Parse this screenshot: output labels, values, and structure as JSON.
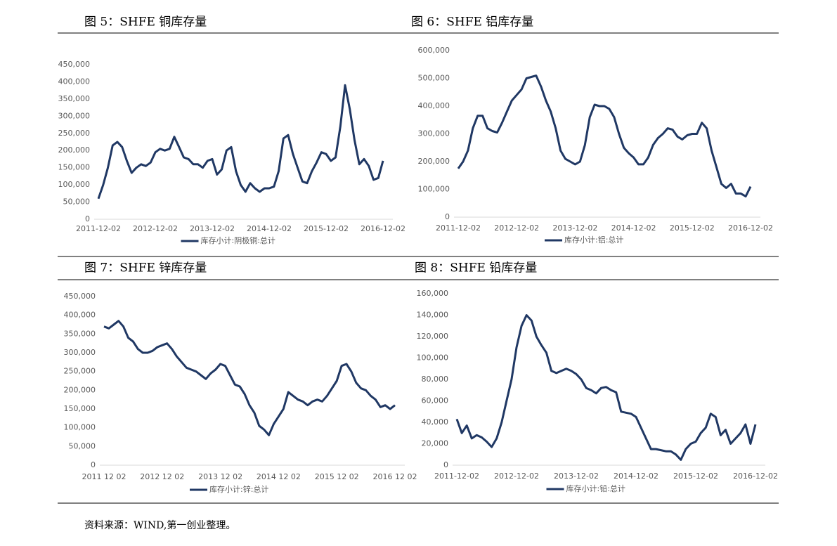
{
  "chart_data": [
    {
      "type": "line",
      "title": "图 5：SHFE 铜库存量",
      "categories": [
        "2011-12-02",
        null,
        null,
        null,
        null,
        null,
        null,
        null,
        null,
        null,
        null,
        null,
        "2012-12-02",
        null,
        null,
        null,
        null,
        null,
        null,
        null,
        null,
        null,
        null,
        null,
        "2013-12-02",
        null,
        null,
        null,
        null,
        null,
        null,
        null,
        null,
        null,
        null,
        null,
        "2014-12-02",
        null,
        null,
        null,
        null,
        null,
        null,
        null,
        null,
        null,
        null,
        null,
        "2015-12-02",
        null,
        null,
        null,
        null,
        null,
        null,
        null,
        null,
        null,
        null,
        null,
        "2016-12-02"
      ],
      "series": [
        {
          "name": "库存小计:阴极铜:总计",
          "color": "#203864",
          "values": [
            60000,
            100000,
            150000,
            215000,
            225000,
            210000,
            170000,
            135000,
            150000,
            160000,
            155000,
            165000,
            195000,
            205000,
            200000,
            205000,
            240000,
            210000,
            180000,
            175000,
            160000,
            160000,
            150000,
            170000,
            175000,
            130000,
            145000,
            200000,
            210000,
            140000,
            100000,
            80000,
            105000,
            90000,
            80000,
            90000,
            90000,
            95000,
            140000,
            235000,
            245000,
            190000,
            150000,
            110000,
            105000,
            140000,
            165000,
            195000,
            190000,
            170000,
            180000,
            270000,
            390000,
            320000,
            230000,
            160000,
            175000,
            155000,
            115000,
            120000,
            170000
          ]
        }
      ],
      "ylim": [
        0,
        450000
      ],
      "yticks": [
        0,
        {
          "value": 50000,
          "label": "50,000"
        },
        {
          "value": 100000,
          "label": "100,000"
        },
        {
          "value": 150000,
          "label": "150,000"
        },
        {
          "value": 200000,
          "label": "200,000"
        },
        {
          "value": 250000,
          "label": "250,000"
        },
        {
          "value": 300000,
          "label": "300,000"
        },
        {
          "value": 350000,
          "label": "350,000"
        },
        {
          "value": 400000,
          "label": "400,000"
        },
        {
          "value": 450000,
          "label": "450,000"
        }
      ],
      "legend": "bottom"
    },
    {
      "type": "line",
      "title": "图 6：SHFE 铝库存量",
      "categories": [
        "2011-12-02",
        null,
        null,
        null,
        null,
        null,
        null,
        null,
        null,
        null,
        null,
        null,
        "2012-12-02",
        null,
        null,
        null,
        null,
        null,
        null,
        null,
        null,
        null,
        null,
        null,
        "2013-12-02",
        null,
        null,
        null,
        null,
        null,
        null,
        null,
        null,
        null,
        null,
        null,
        "2014-12-02",
        null,
        null,
        null,
        null,
        null,
        null,
        null,
        null,
        null,
        null,
        null,
        "2015-12-02",
        null,
        null,
        null,
        null,
        null,
        null,
        null,
        null,
        null,
        null,
        null,
        "2016-12-02"
      ],
      "series": [
        {
          "name": "库存小计:铝:总计",
          "color": "#203864",
          "values": [
            175000,
            200000,
            240000,
            320000,
            365000,
            365000,
            320000,
            310000,
            305000,
            340000,
            380000,
            420000,
            440000,
            460000,
            500000,
            505000,
            510000,
            470000,
            420000,
            380000,
            320000,
            240000,
            210000,
            200000,
            190000,
            200000,
            260000,
            360000,
            405000,
            400000,
            400000,
            390000,
            360000,
            300000,
            250000,
            230000,
            215000,
            190000,
            190000,
            215000,
            260000,
            285000,
            300000,
            320000,
            315000,
            290000,
            280000,
            295000,
            300000,
            300000,
            340000,
            320000,
            240000,
            180000,
            120000,
            105000,
            120000,
            85000,
            85000,
            75000,
            110000
          ]
        }
      ],
      "ylim": [
        0,
        600000
      ],
      "yticks": [
        0,
        {
          "value": 100000,
          "label": "100,000"
        },
        {
          "value": 200000,
          "label": "200,000"
        },
        {
          "value": 300000,
          "label": "300,000"
        },
        {
          "value": 400000,
          "label": "400,000"
        },
        {
          "value": 500000,
          "label": "500,000"
        },
        {
          "value": 600000,
          "label": "600,000"
        }
      ],
      "legend": "bottom"
    },
    {
      "type": "line",
      "title": "图 7：SHFE 锌库存量",
      "categories": [
        "2011 12 02",
        null,
        null,
        null,
        null,
        null,
        null,
        null,
        null,
        null,
        null,
        null,
        "2012 12 02",
        null,
        null,
        null,
        null,
        null,
        null,
        null,
        null,
        null,
        null,
        null,
        "2013 12 02",
        null,
        null,
        null,
        null,
        null,
        null,
        null,
        null,
        null,
        null,
        null,
        "2014 12 02",
        null,
        null,
        null,
        null,
        null,
        null,
        null,
        null,
        null,
        null,
        null,
        "2015 12 02",
        null,
        null,
        null,
        null,
        null,
        null,
        null,
        null,
        null,
        null,
        null,
        "2016 12 02"
      ],
      "series": [
        {
          "name": "库存小计:锌:总计",
          "color": "#203864",
          "values": [
            370000,
            365000,
            375000,
            385000,
            370000,
            340000,
            330000,
            310000,
            300000,
            300000,
            305000,
            315000,
            320000,
            325000,
            310000,
            290000,
            275000,
            260000,
            255000,
            250000,
            240000,
            230000,
            245000,
            255000,
            270000,
            265000,
            240000,
            215000,
            210000,
            190000,
            160000,
            140000,
            105000,
            95000,
            80000,
            110000,
            130000,
            150000,
            195000,
            185000,
            175000,
            170000,
            160000,
            170000,
            175000,
            170000,
            185000,
            205000,
            225000,
            265000,
            270000,
            250000,
            220000,
            205000,
            200000,
            185000,
            175000,
            155000,
            160000,
            150000,
            160000
          ]
        }
      ],
      "ylim": [
        0,
        450000
      ],
      "yticks": [
        0,
        {
          "value": 50000,
          "label": "50,000"
        },
        {
          "value": 100000,
          "label": "100,000"
        },
        {
          "value": 150000,
          "label": "150,000"
        },
        {
          "value": 200000,
          "label": "200,000"
        },
        {
          "value": 250000,
          "label": "250,000"
        },
        {
          "value": 300000,
          "label": "300,000"
        },
        {
          "value": 350000,
          "label": "350,000"
        },
        {
          "value": 400000,
          "label": "400,000"
        },
        {
          "value": 450000,
          "label": "450,000"
        }
      ],
      "legend": "bottom"
    },
    {
      "type": "line",
      "title": "图 8：SHFE 铅库存量",
      "categories": [
        "2011-12-02",
        null,
        null,
        null,
        null,
        null,
        null,
        null,
        null,
        null,
        null,
        null,
        "2012-12-02",
        null,
        null,
        null,
        null,
        null,
        null,
        null,
        null,
        null,
        null,
        null,
        "2013-12-02",
        null,
        null,
        null,
        null,
        null,
        null,
        null,
        null,
        null,
        null,
        null,
        "2014-12-02",
        null,
        null,
        null,
        null,
        null,
        null,
        null,
        null,
        null,
        null,
        null,
        "2015-12-02",
        null,
        null,
        null,
        null,
        null,
        null,
        null,
        null,
        null,
        null,
        null,
        "2016-12-02"
      ],
      "series": [
        {
          "name": "库存小计:铅:总计",
          "color": "#203864",
          "values": [
            43000,
            30000,
            37000,
            25000,
            28000,
            26000,
            22000,
            17000,
            25000,
            40000,
            60000,
            80000,
            110000,
            130000,
            140000,
            135000,
            120000,
            112000,
            105000,
            88000,
            86000,
            88000,
            90000,
            88000,
            85000,
            80000,
            72000,
            70000,
            67000,
            72000,
            73000,
            70000,
            68000,
            50000,
            49000,
            48000,
            45000,
            35000,
            25000,
            15000,
            15000,
            14000,
            13000,
            13000,
            10000,
            5000,
            15000,
            20000,
            22000,
            30000,
            35000,
            48000,
            45000,
            28000,
            33000,
            20000,
            25000,
            30000,
            38000,
            20000,
            38000
          ]
        }
      ],
      "ylim": [
        0,
        160000
      ],
      "yticks": [
        0,
        {
          "value": 20000,
          "label": "20,000"
        },
        {
          "value": 40000,
          "label": "40,000"
        },
        {
          "value": 60000,
          "label": "60,000"
        },
        {
          "value": 80000,
          "label": "80,000"
        },
        {
          "value": 100000,
          "label": "100,000"
        },
        {
          "value": 120000,
          "label": "120,000"
        },
        {
          "value": 140000,
          "label": "140,000"
        },
        {
          "value": 160000,
          "label": "160,000"
        }
      ],
      "legend": "bottom"
    }
  ],
  "source": "资料来源：WIND,第一创业整理。"
}
